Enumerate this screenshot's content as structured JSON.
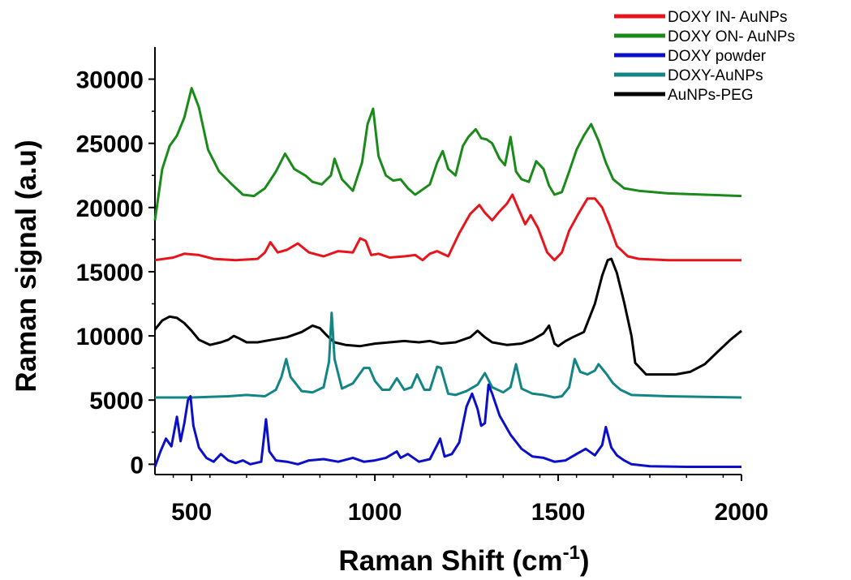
{
  "chart_data": {
    "type": "line",
    "xlabel": "Raman Shift (cm-1)",
    "xlabel_main": "Raman Shift (cm",
    "xlabel_sup": "-1",
    "xlabel_close": ")",
    "ylabel": "Raman signal (a.u)",
    "xlim": [
      400,
      2000
    ],
    "ylim": [
      -800,
      32500
    ],
    "x_ticks": [
      500,
      1000,
      1500,
      2000
    ],
    "y_ticks": [
      0,
      5000,
      10000,
      15000,
      20000,
      25000,
      30000
    ],
    "x_tick_labels": [
      "500",
      "1000",
      "1500",
      "2000"
    ],
    "y_tick_labels": [
      "0",
      "5000",
      "10000",
      "15000",
      "20000",
      "25000",
      "30000"
    ],
    "grid": false,
    "legend_position": "top-right",
    "series": [
      {
        "name": "DOXY IN- AuNPs",
        "color": "#e8141c",
        "x": [
          400,
          450,
          480,
          520,
          560,
          620,
          680,
          700,
          715,
          735,
          760,
          790,
          820,
          860,
          900,
          940,
          960,
          975,
          990,
          1010,
          1040,
          1080,
          1110,
          1130,
          1150,
          1170,
          1200,
          1230,
          1260,
          1285,
          1300,
          1320,
          1340,
          1360,
          1375,
          1390,
          1410,
          1425,
          1445,
          1470,
          1490,
          1510,
          1530,
          1555,
          1580,
          1600,
          1620,
          1640,
          1660,
          1690,
          1720,
          1800,
          1900,
          2000
        ],
        "y": [
          15900,
          16100,
          16400,
          16300,
          16000,
          15900,
          16000,
          16500,
          17300,
          16500,
          16700,
          17200,
          16500,
          16200,
          16600,
          16500,
          17600,
          17400,
          16300,
          16400,
          16100,
          16200,
          16300,
          15900,
          16400,
          16600,
          16200,
          18000,
          19500,
          20200,
          19600,
          19000,
          19700,
          20300,
          21000,
          20000,
          18700,
          19400,
          18400,
          16500,
          15900,
          16500,
          18200,
          19500,
          20700,
          20700,
          20000,
          18600,
          17000,
          16200,
          16000,
          15900,
          15900,
          15900
        ]
      },
      {
        "name": "DOXY ON- AuNPs",
        "color": "#1a8a1a",
        "x": [
          400,
          420,
          440,
          460,
          480,
          500,
          520,
          545,
          575,
          610,
          640,
          670,
          700,
          730,
          755,
          780,
          810,
          830,
          855,
          880,
          890,
          910,
          940,
          965,
          980,
          995,
          1010,
          1030,
          1050,
          1070,
          1090,
          1110,
          1130,
          1150,
          1170,
          1185,
          1200,
          1220,
          1240,
          1255,
          1275,
          1290,
          1305,
          1320,
          1340,
          1355,
          1370,
          1385,
          1400,
          1420,
          1440,
          1460,
          1475,
          1490,
          1510,
          1530,
          1550,
          1570,
          1590,
          1610,
          1630,
          1650,
          1680,
          1720,
          1800,
          1900,
          2000
        ],
        "y": [
          19000,
          23000,
          24800,
          25600,
          27000,
          29300,
          27800,
          24500,
          22800,
          21800,
          21000,
          20900,
          21500,
          22800,
          24200,
          23000,
          22500,
          22000,
          21800,
          22500,
          23800,
          22200,
          21300,
          23500,
          26500,
          27700,
          24000,
          22500,
          22100,
          22200,
          21500,
          21000,
          21400,
          21800,
          23500,
          24400,
          23000,
          22500,
          24800,
          25500,
          26100,
          25400,
          25300,
          25000,
          23800,
          23300,
          25500,
          22800,
          22200,
          22000,
          23600,
          23000,
          21700,
          21000,
          21200,
          22800,
          24500,
          25600,
          26500,
          25200,
          23500,
          22200,
          21500,
          21300,
          21100,
          21000,
          20900
        ]
      },
      {
        "name": "DOXY powder",
        "color": "#0b10c8",
        "x": [
          400,
          415,
          430,
          445,
          460,
          470,
          480,
          490,
          497,
          505,
          520,
          540,
          560,
          580,
          600,
          620,
          640,
          660,
          690,
          703,
          712,
          730,
          760,
          790,
          820,
          860,
          900,
          940,
          970,
          1000,
          1030,
          1060,
          1070,
          1090,
          1120,
          1150,
          1170,
          1178,
          1190,
          1210,
          1230,
          1250,
          1265,
          1280,
          1290,
          1300,
          1310,
          1320,
          1340,
          1370,
          1400,
          1430,
          1460,
          1490,
          1520,
          1550,
          1575,
          1600,
          1620,
          1630,
          1645,
          1660,
          1680,
          1700,
          1750,
          1850,
          2000
        ],
        "y": [
          -200,
          1000,
          2000,
          1400,
          3700,
          1800,
          3200,
          5000,
          5300,
          3000,
          1300,
          500,
          200,
          800,
          300,
          100,
          300,
          0,
          200,
          3500,
          1000,
          300,
          200,
          0,
          300,
          400,
          200,
          500,
          200,
          300,
          500,
          1000,
          500,
          800,
          200,
          400,
          1500,
          2000,
          600,
          800,
          1700,
          4500,
          5500,
          4300,
          3000,
          3200,
          6200,
          5500,
          3800,
          2300,
          1200,
          600,
          500,
          200,
          300,
          800,
          1200,
          700,
          1500,
          2900,
          1300,
          700,
          300,
          0,
          -150,
          -200,
          -200
        ]
      },
      {
        "name": "DOXY-AuNPs",
        "color": "#138585",
        "x": [
          400,
          500,
          600,
          650,
          700,
          730,
          745,
          758,
          770,
          800,
          830,
          860,
          875,
          882,
          890,
          910,
          940,
          970,
          985,
          1000,
          1020,
          1040,
          1060,
          1080,
          1100,
          1115,
          1135,
          1150,
          1170,
          1180,
          1200,
          1220,
          1250,
          1280,
          1300,
          1320,
          1350,
          1370,
          1385,
          1400,
          1430,
          1460,
          1490,
          1510,
          1530,
          1545,
          1560,
          1580,
          1600,
          1610,
          1630,
          1650,
          1670,
          1700,
          1800,
          2000
        ],
        "y": [
          5200,
          5200,
          5300,
          5400,
          5300,
          5800,
          6800,
          8200,
          6800,
          5700,
          5600,
          6000,
          8000,
          11800,
          8200,
          5900,
          6300,
          7500,
          7500,
          6500,
          5800,
          5800,
          6700,
          5800,
          6000,
          7000,
          5800,
          5800,
          7600,
          7500,
          5500,
          5400,
          5700,
          6200,
          7100,
          6000,
          5600,
          6000,
          7800,
          5900,
          5500,
          5400,
          5200,
          5300,
          6000,
          8200,
          7200,
          7000,
          7300,
          7800,
          7100,
          6300,
          5800,
          5400,
          5300,
          5200
        ]
      },
      {
        "name": "AuNPs-PEG",
        "color": "#000000",
        "x": [
          400,
          420,
          440,
          460,
          480,
          500,
          520,
          550,
          580,
          600,
          615,
          630,
          650,
          680,
          720,
          760,
          800,
          830,
          850,
          870,
          890,
          920,
          960,
          1000,
          1040,
          1080,
          1120,
          1150,
          1180,
          1220,
          1260,
          1280,
          1300,
          1320,
          1360,
          1400,
          1430,
          1460,
          1475,
          1490,
          1500,
          1520,
          1540,
          1570,
          1600,
          1620,
          1635,
          1645,
          1660,
          1680,
          1700,
          1710,
          1740,
          1780,
          1820,
          1860,
          1900,
          1940,
          1970,
          2000
        ],
        "y": [
          10500,
          11200,
          11500,
          11400,
          11000,
          10400,
          9700,
          9300,
          9500,
          9700,
          10000,
          9800,
          9500,
          9500,
          9700,
          9900,
          10300,
          10800,
          10600,
          10000,
          9500,
          9300,
          9200,
          9400,
          9500,
          9600,
          9500,
          9600,
          9400,
          9500,
          9900,
          10400,
          9900,
          9500,
          9300,
          9400,
          9700,
          10200,
          10800,
          9400,
          9200,
          9600,
          9900,
          10300,
          12500,
          14700,
          15900,
          16000,
          14900,
          12600,
          10000,
          7900,
          7000,
          7000,
          7000,
          7200,
          7800,
          8900,
          9700,
          10400
        ]
      }
    ]
  }
}
